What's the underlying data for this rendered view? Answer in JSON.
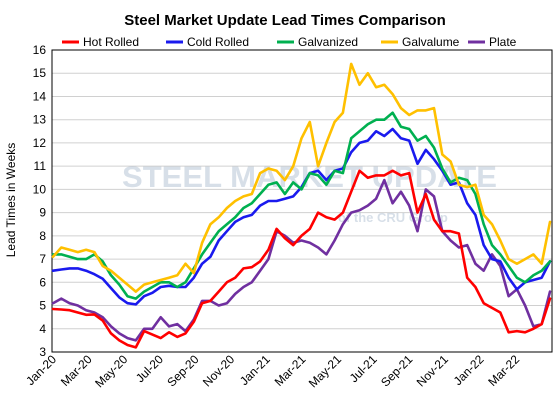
{
  "chart_data": {
    "type": "line",
    "title": "Steel Market Update Lead Times Comparison",
    "xlabel": "",
    "ylabel": "Lead Times in Weeks",
    "ylim": [
      3,
      16
    ],
    "yticks": [
      3,
      4,
      5,
      6,
      7,
      8,
      9,
      10,
      11,
      12,
      13,
      14,
      15,
      16
    ],
    "grid": true,
    "legend_position": "top",
    "x_start": "Jan-20",
    "x_tick_labels": [
      "Jan-20",
      "Mar-20",
      "May-20",
      "Jul-20",
      "Sep-20",
      "Nov-20",
      "Jan-21",
      "Mar-21",
      "May-21",
      "Jul-21",
      "Sep-21",
      "Nov-21",
      "Jan-22",
      "Mar-22"
    ],
    "watermark": {
      "main": "STEEL MARKET UPDATE",
      "sub": "of the CRU Group"
    },
    "series": [
      {
        "name": "Hot Rolled",
        "color": "#ff0000",
        "values": [
          4.85,
          4.83,
          4.8,
          4.7,
          4.6,
          4.62,
          4.35,
          3.8,
          3.5,
          3.3,
          3.2,
          3.9,
          3.75,
          3.6,
          3.85,
          3.65,
          3.8,
          4.3,
          5.1,
          5.2,
          5.6,
          6.0,
          6.2,
          6.6,
          6.65,
          6.9,
          7.4,
          8.3,
          7.9,
          7.6,
          8.0,
          8.3,
          9.0,
          8.8,
          8.7,
          9.0,
          9.9,
          10.8,
          10.5,
          10.6,
          10.6,
          10.8,
          10.6,
          10.7,
          9.0,
          9.8,
          8.7,
          8.2,
          8.2,
          8.1,
          6.2,
          5.8,
          5.1,
          4.9,
          4.7,
          3.85,
          3.9,
          3.85,
          4.0,
          4.2,
          5.3
        ]
      },
      {
        "name": "Cold Rolled",
        "color": "#1a1aee",
        "values": [
          6.5,
          6.55,
          6.6,
          6.6,
          6.5,
          6.35,
          6.15,
          5.75,
          5.35,
          5.1,
          5.05,
          5.4,
          5.55,
          5.8,
          5.85,
          5.8,
          5.8,
          6.2,
          6.8,
          7.1,
          7.8,
          8.2,
          8.6,
          8.8,
          8.9,
          9.3,
          9.5,
          9.5,
          9.6,
          9.7,
          10.1,
          10.7,
          10.8,
          10.4,
          10.8,
          10.9,
          11.6,
          12.0,
          12.1,
          12.5,
          12.3,
          12.6,
          12.2,
          12.1,
          11.1,
          11.7,
          11.3,
          10.8,
          10.2,
          10.3,
          9.4,
          8.9,
          7.6,
          7.0,
          6.9,
          6.2,
          5.7,
          6.0,
          6.1,
          6.2,
          6.9
        ]
      },
      {
        "name": "Galvanized",
        "color": "#00b050",
        "values": [
          7.2,
          7.2,
          7.1,
          7.0,
          7.0,
          7.2,
          6.9,
          6.3,
          5.9,
          5.4,
          5.3,
          5.6,
          5.8,
          6.0,
          6.0,
          5.8,
          6.0,
          6.6,
          7.2,
          7.7,
          8.2,
          8.5,
          8.8,
          9.2,
          9.4,
          9.8,
          10.2,
          10.3,
          9.8,
          10.3,
          10.0,
          10.7,
          10.6,
          10.2,
          10.8,
          10.7,
          12.2,
          12.5,
          12.8,
          13.0,
          13.0,
          13.3,
          12.7,
          12.6,
          12.1,
          12.3,
          11.8,
          10.9,
          10.3,
          10.5,
          10.4,
          9.8,
          8.5,
          7.6,
          7.2,
          6.7,
          6.2,
          6.0,
          6.3,
          6.5,
          6.9
        ]
      },
      {
        "name": "Galvalume",
        "color": "#ffc000",
        "values": [
          7.1,
          7.5,
          7.4,
          7.3,
          7.4,
          7.3,
          6.7,
          6.5,
          6.2,
          5.9,
          5.6,
          5.9,
          6.0,
          6.1,
          6.2,
          6.3,
          6.8,
          6.4,
          7.7,
          8.5,
          8.8,
          9.2,
          9.5,
          9.7,
          9.8,
          10.7,
          10.9,
          10.8,
          10.4,
          11.0,
          12.2,
          12.9,
          11.0,
          12.0,
          12.9,
          13.3,
          15.4,
          14.5,
          15.0,
          14.4,
          14.5,
          14.1,
          13.5,
          13.2,
          13.4,
          13.4,
          13.5,
          11.5,
          11.2,
          10.2,
          10.1,
          10.2,
          8.9,
          8.5,
          7.8,
          7.0,
          6.8,
          7.0,
          7.2,
          6.8,
          8.6
        ]
      },
      {
        "name": "Plate",
        "color": "#7030a0",
        "values": [
          5.1,
          5.3,
          5.1,
          5.0,
          4.8,
          4.7,
          4.5,
          4.1,
          3.8,
          3.6,
          3.5,
          4.0,
          4.0,
          4.5,
          4.1,
          4.2,
          3.9,
          4.4,
          5.2,
          5.2,
          5.0,
          5.1,
          5.5,
          5.8,
          6.0,
          6.5,
          7.0,
          8.2,
          8.0,
          7.7,
          7.8,
          7.7,
          7.5,
          7.2,
          7.8,
          8.5,
          9.0,
          9.1,
          9.3,
          9.6,
          10.4,
          9.4,
          9.9,
          9.3,
          8.2,
          10.0,
          9.7,
          8.2,
          7.8,
          7.5,
          7.6,
          6.8,
          6.5,
          7.2,
          6.7,
          5.4,
          5.7,
          5.0,
          4.1,
          4.2,
          5.6
        ]
      }
    ]
  }
}
